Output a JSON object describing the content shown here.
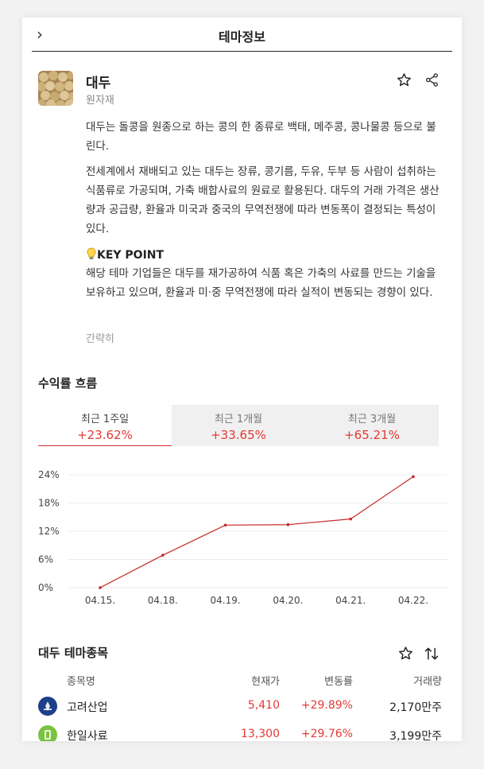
{
  "header": {
    "title": "테마정보"
  },
  "theme": {
    "name": "대두",
    "category": "원자재",
    "desc1": "대두는 돌콩을 원종으로 하는 콩의 한 종류로 백태, 메주콩, 콩나물콩 등으로 불린다.",
    "desc2": "전세계에서 재배되고 있는 대두는 장류, 콩기름, 두유, 두부 등 사람이 섭취하는 식품류로 가공되며, 가축 배합사료의 원료로 활용된다. 대두의 거래 가격은 생산량과 공급량, 환율과 미국과 중국의 무역전쟁에 따라 변동폭이 결정되는 특성이 있다.",
    "keypoint_title": "KEY POINT",
    "keypoint_text": "해당 테마 기업들은 대두를 재가공하여 식품 혹은 가축의 사료를 만드는 기술을 보유하고 있으며, 환율과 미·중 무역전쟁에 따라 실적이 변동되는 경향이 있다.",
    "simple_label": "간략히"
  },
  "returns": {
    "title": "수익률 흐름",
    "tabs": [
      {
        "label": "최근 1주일",
        "value": "+23.62%",
        "active": true
      },
      {
        "label": "최근 1개월",
        "value": "+33.65%",
        "active": false
      },
      {
        "label": "최근 3개월",
        "value": "+65.21%",
        "active": false
      }
    ]
  },
  "chart_data": {
    "type": "line",
    "x": [
      "04.15.",
      "04.18.",
      "04.19.",
      "04.20.",
      "04.21.",
      "04.22."
    ],
    "series": [
      {
        "values": [
          0,
          6.9,
          13.3,
          13.4,
          14.6,
          23.6
        ]
      }
    ],
    "yticks": [
      "0%",
      "6%",
      "12%",
      "18%",
      "24%"
    ],
    "ylim": [
      0,
      24
    ],
    "grid": true,
    "line_color": "#c62828"
  },
  "stocks": {
    "title": "대두 테마종목",
    "columns": {
      "name": "종목명",
      "price": "현재가",
      "change": "변동률",
      "volume": "거래량"
    },
    "rows": [
      {
        "name": "고려산업",
        "price": "5,410",
        "change": "+29.89%",
        "volume": "2,170만주",
        "logo_color": "#1e3f8a"
      },
      {
        "name": "한일사료",
        "price": "13,300",
        "change": "+29.76%",
        "volume": "3,199만주",
        "logo_color": "#7cc242"
      }
    ]
  },
  "colors": {
    "up": "#e53935",
    "accent": "#d32f2f"
  }
}
